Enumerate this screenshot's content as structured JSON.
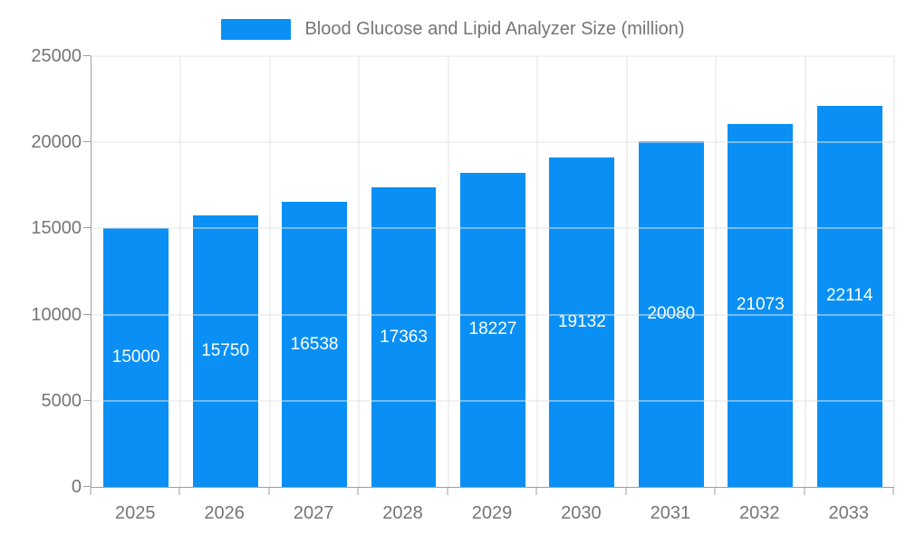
{
  "chart_data": {
    "type": "bar",
    "title": "Blood Glucose and Lipid Analyzer Size (million)",
    "categories": [
      "2025",
      "2026",
      "2027",
      "2028",
      "2029",
      "2030",
      "2031",
      "2032",
      "2033"
    ],
    "values": [
      15000,
      15750,
      16538,
      17363,
      18227,
      19132,
      20080,
      21073,
      22114
    ],
    "xlabel": "",
    "ylabel": "",
    "ylim": [
      0,
      25000
    ],
    "yticks": [
      0,
      5000,
      10000,
      15000,
      20000,
      25000
    ],
    "grid": true,
    "legend_position": "top",
    "bar_labels_inside": true
  },
  "legend": {
    "label": "Blood Glucose and Lipid Analyzer Size (million)"
  },
  "colors": {
    "bar": "#0a90f4",
    "grid": "#e3e3e3",
    "axis": "#9e9e9e",
    "text": "#757575",
    "bar_label": "#ffffff",
    "background": "#ffffff"
  }
}
